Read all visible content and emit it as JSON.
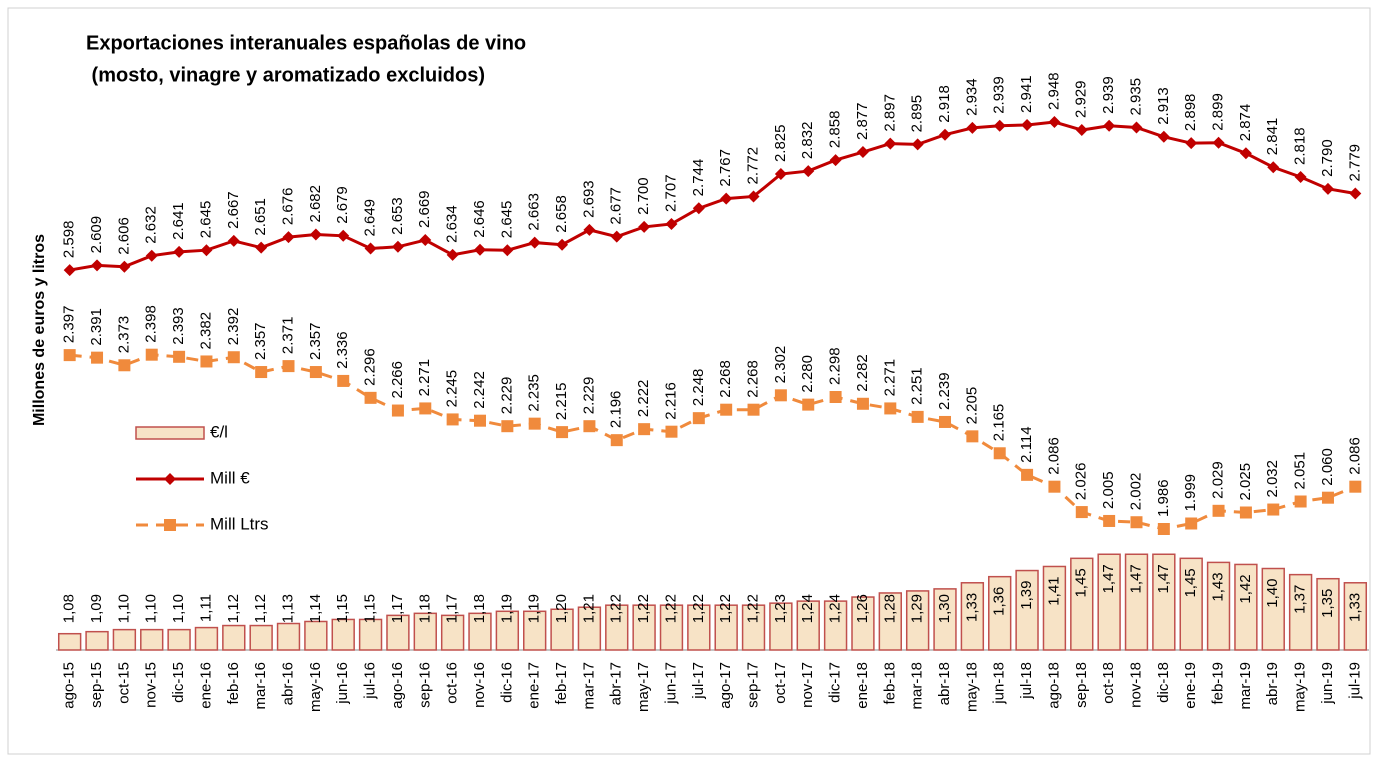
{
  "chart_data": {
    "type": "combo",
    "title": "Exportaciones interanuales españolas de vino",
    "subtitle": " (mosto, vinagre y aromatizado excluidos)",
    "y_label": "Millones de euros y litros",
    "legend": "left",
    "categories": [
      "ago-15",
      "sep-15",
      "oct-15",
      "nov-15",
      "dic-15",
      "ene-16",
      "feb-16",
      "mar-16",
      "abr-16",
      "may-16",
      "jun-16",
      "jul-16",
      "ago-16",
      "sep-16",
      "oct-16",
      "nov-16",
      "dic-16",
      "ene-17",
      "feb-17",
      "mar-17",
      "abr-17",
      "may-17",
      "jun-17",
      "jul-17",
      "ago-17",
      "sep-17",
      "oct-17",
      "nov-17",
      "dic-17",
      "ene-18",
      "feb-18",
      "mar-18",
      "abr-18",
      "may-18",
      "jun-18",
      "jul-18",
      "ago-18",
      "sep-18",
      "oct-18",
      "nov-18",
      "dic-18",
      "ene-19",
      "feb-19",
      "mar-19",
      "abr-19",
      "may-19",
      "jun-19",
      "jul-19"
    ],
    "ylim": [
      1.0,
      3.7
    ],
    "y2lim": [
      1700,
      3000
    ],
    "series": [
      {
        "name": "€/l",
        "type": "bar",
        "color": "#c0504d",
        "fill": "#f7e3c6",
        "values": [
          1.08,
          1.09,
          1.1,
          1.1,
          1.1,
          1.11,
          1.12,
          1.12,
          1.13,
          1.14,
          1.15,
          1.15,
          1.17,
          1.18,
          1.17,
          1.18,
          1.19,
          1.19,
          1.2,
          1.21,
          1.22,
          1.22,
          1.22,
          1.22,
          1.22,
          1.22,
          1.23,
          1.24,
          1.24,
          1.26,
          1.28,
          1.29,
          1.3,
          1.33,
          1.36,
          1.39,
          1.41,
          1.45,
          1.47,
          1.47,
          1.47,
          1.45,
          1.43,
          1.42,
          1.4,
          1.37,
          1.35,
          1.33
        ],
        "value_labels": [
          "1,08",
          "1,09",
          "1,10",
          "1,10",
          "1,10",
          "1,11",
          "1,12",
          "1,12",
          "1,13",
          "1,14",
          "1,15",
          "1,15",
          "1,17",
          "1,18",
          "1,17",
          "1,18",
          "1,19",
          "1,19",
          "1,20",
          "1,21",
          "1,22",
          "1,22",
          "1,22",
          "1,22",
          "1,22",
          "1,22",
          "1,23",
          "1,24",
          "1,24",
          "1,26",
          "1,28",
          "1,29",
          "1,30",
          "1,33",
          "1,36",
          "1,39",
          "1,41",
          "1,45",
          "1,47",
          "1,47",
          "1,47",
          "1,45",
          "1,43",
          "1,42",
          "1,40",
          "1,37",
          "1,35",
          "1,33"
        ]
      },
      {
        "name": "Mill €",
        "type": "line",
        "axis": "y2",
        "color": "#c00000",
        "marker": "diamond",
        "dashed": false,
        "values": [
          2598,
          2609,
          2606,
          2632,
          2641,
          2645,
          2667,
          2651,
          2676,
          2682,
          2679,
          2649,
          2653,
          2669,
          2634,
          2646,
          2645,
          2663,
          2658,
          2693,
          2677,
          2700,
          2707,
          2744,
          2767,
          2772,
          2825,
          2832,
          2858,
          2877,
          2897,
          2895,
          2918,
          2934,
          2939,
          2941,
          2948,
          2929,
          2939,
          2935,
          2913,
          2898,
          2899,
          2874,
          2841,
          2818,
          2790,
          2779
        ],
        "value_labels": [
          "2.598",
          "2.609",
          "2.606",
          "2.632",
          "2.641",
          "2.645",
          "2.667",
          "2.651",
          "2.676",
          "2.682",
          "2.679",
          "2.649",
          "2.653",
          "2.669",
          "2.634",
          "2.646",
          "2.645",
          "2.663",
          "2.658",
          "2.693",
          "2.677",
          "2.700",
          "2.707",
          "2.744",
          "2.767",
          "2.772",
          "2.825",
          "2.832",
          "2.858",
          "2.877",
          "2.897",
          "2.895",
          "2.918",
          "2.934",
          "2.939",
          "2.941",
          "2.948",
          "2.929",
          "2.939",
          "2.935",
          "2.913",
          "2.898",
          "2.899",
          "2.874",
          "2.841",
          "2.818",
          "2.790",
          "2.779"
        ]
      },
      {
        "name": "Mill Ltrs",
        "type": "line",
        "axis": "y2",
        "color": "#f08a3c",
        "marker": "square",
        "dashed": true,
        "values": [
          2397,
          2391,
          2373,
          2398,
          2393,
          2382,
          2392,
          2357,
          2371,
          2357,
          2336,
          2296,
          2266,
          2271,
          2245,
          2242,
          2229,
          2235,
          2215,
          2229,
          2196,
          2222,
          2216,
          2248,
          2268,
          2268,
          2302,
          2280,
          2298,
          2282,
          2271,
          2251,
          2239,
          2205,
          2165,
          2114,
          2086,
          2026,
          2005,
          2002,
          1986,
          1999,
          2029,
          2025,
          2032,
          2051,
          2060,
          2086
        ],
        "value_labels": [
          "2.397",
          "2.391",
          "2.373",
          "2.398",
          "2.393",
          "2.382",
          "2.392",
          "2.357",
          "2.371",
          "2.357",
          "2.336",
          "2.296",
          "2.266",
          "2.271",
          "2.245",
          "2.242",
          "2.229",
          "2.235",
          "2.215",
          "2.229",
          "2.196",
          "2.222",
          "2.216",
          "2.248",
          "2.268",
          "2.268",
          "2.302",
          "2.280",
          "2.298",
          "2.282",
          "2.271",
          "2.251",
          "2.239",
          "2.205",
          "2.165",
          "2.114",
          "2.086",
          "2.026",
          "2.005",
          "2.002",
          "1.986",
          "1.999",
          "2.029",
          "2.025",
          "2.032",
          "2.051",
          "2.060",
          "2.086"
        ]
      }
    ]
  }
}
